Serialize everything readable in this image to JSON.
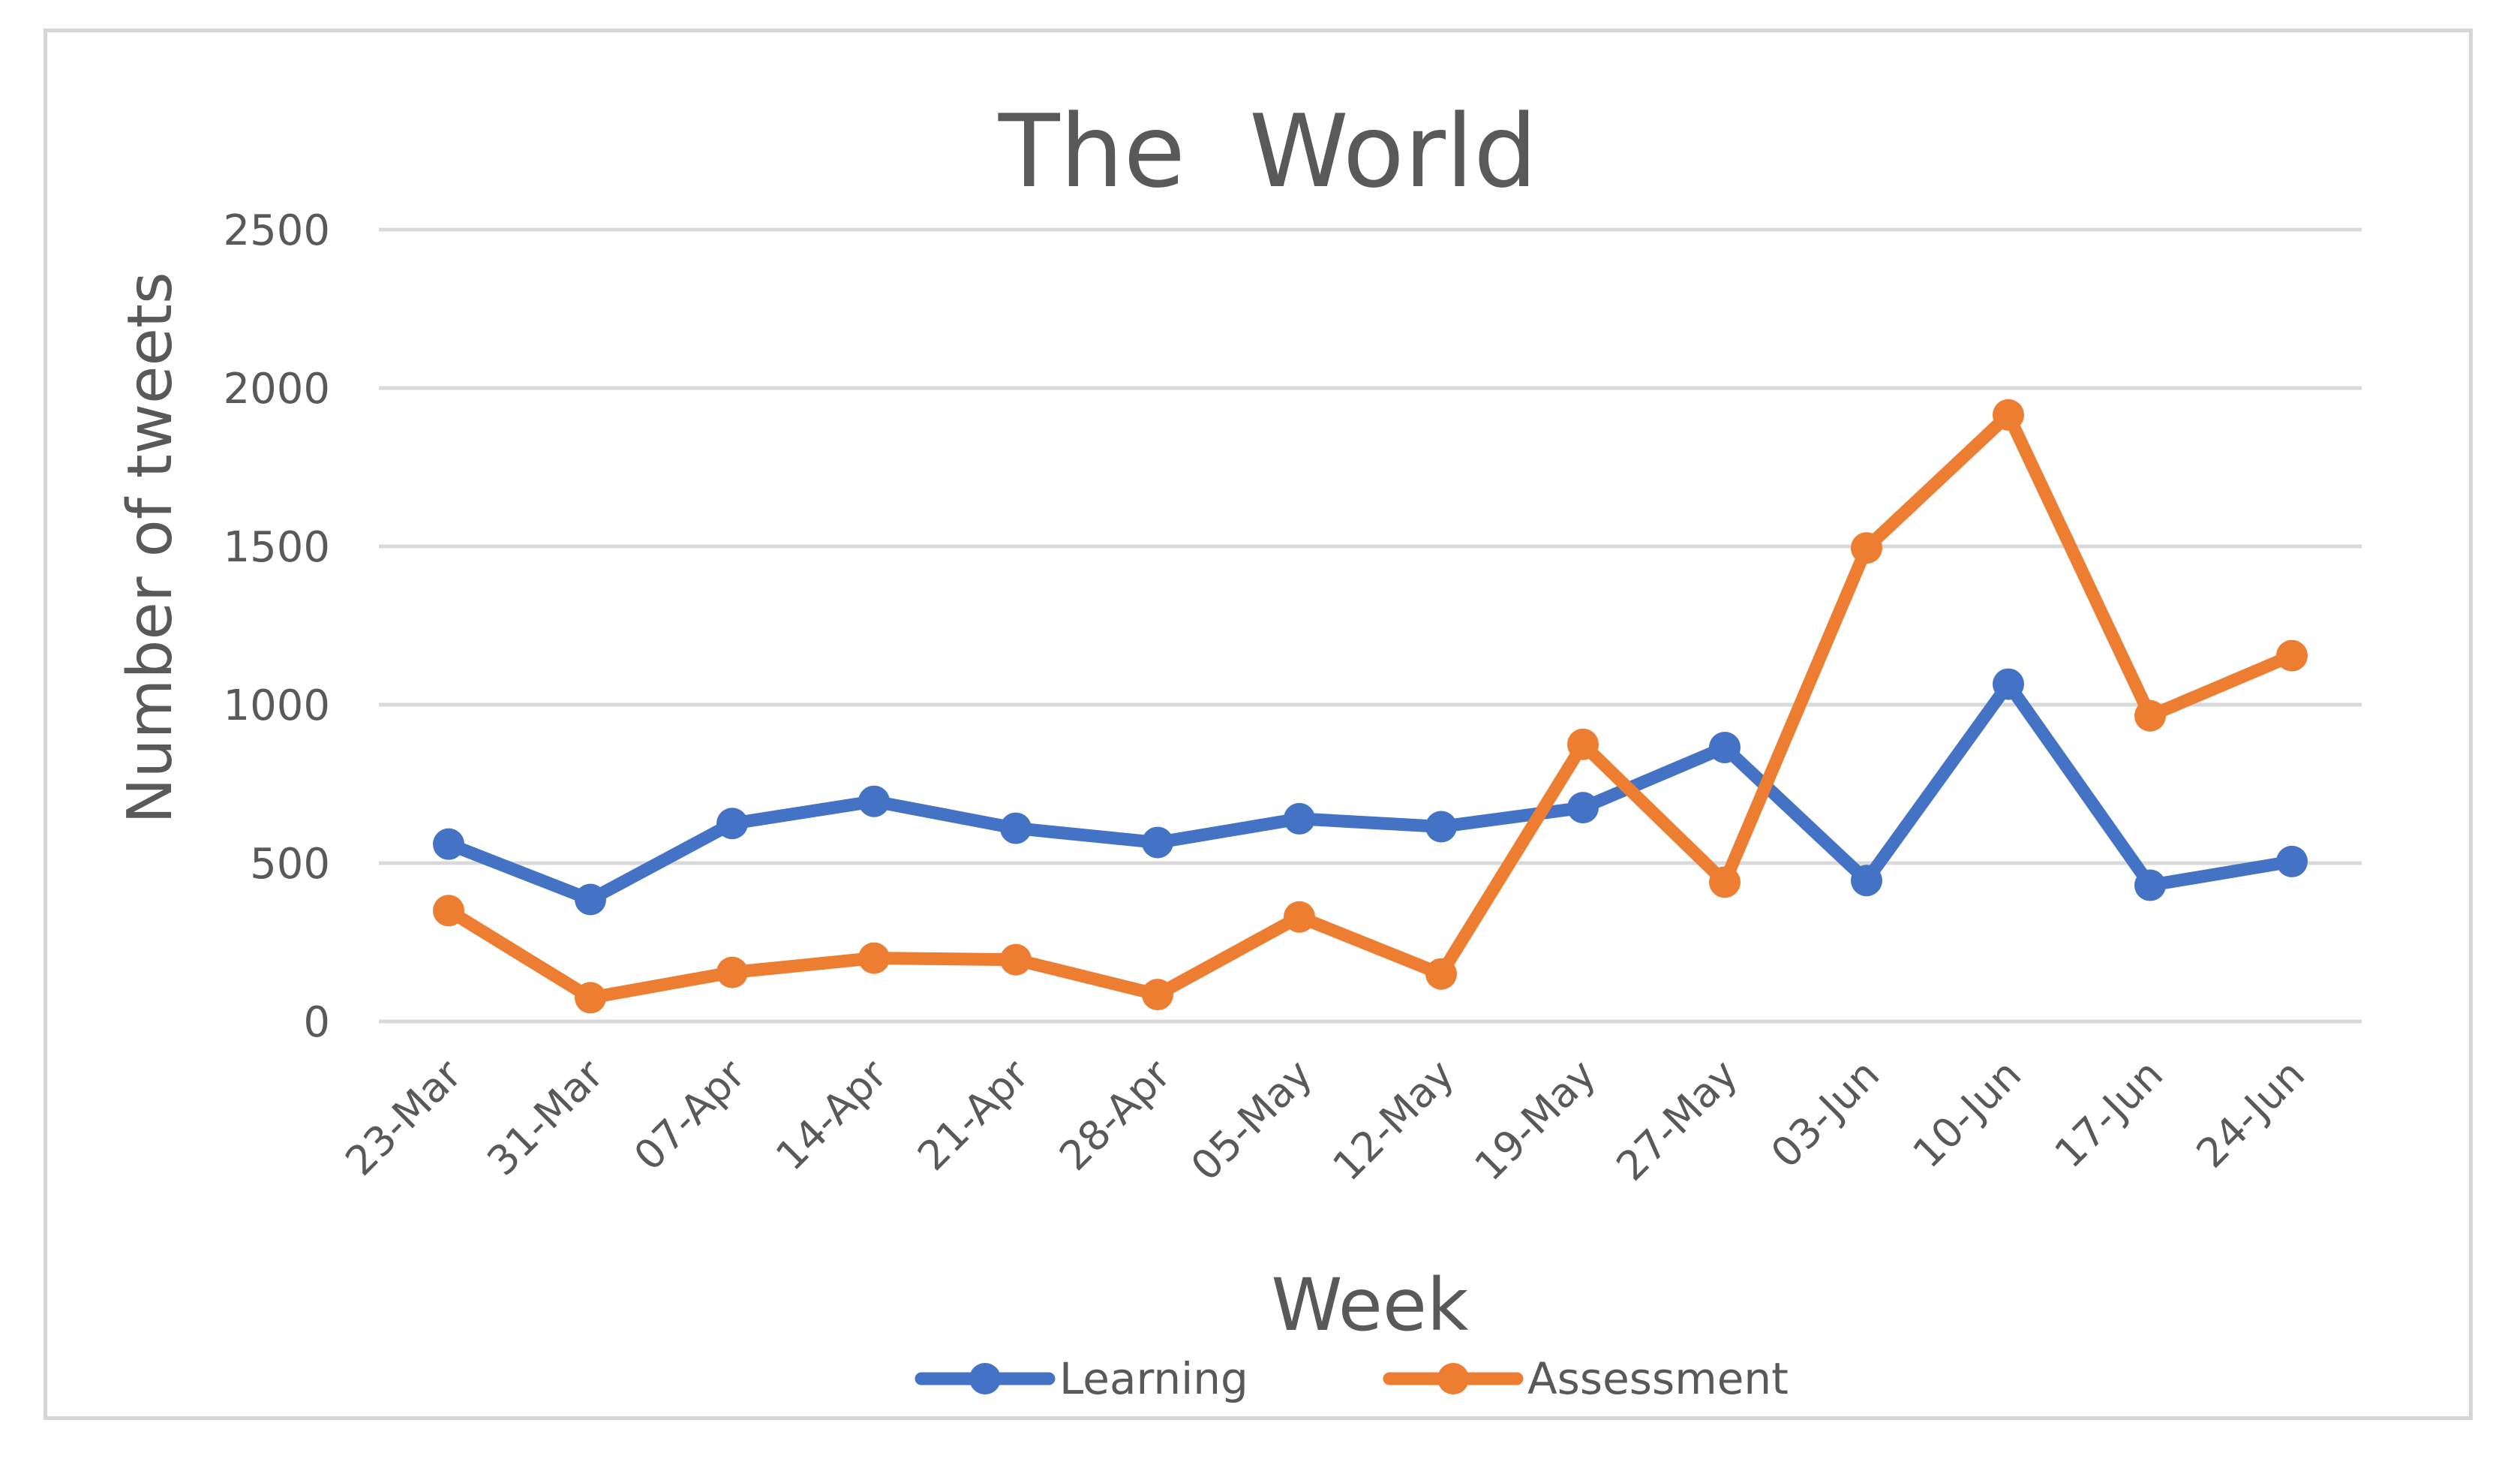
{
  "chart_data": {
    "type": "line",
    "title": "The  World",
    "xlabel": "Week",
    "ylabel": "Number of tweets",
    "categories": [
      "23-Mar",
      "31-Mar",
      "07-Apr",
      "14-Apr",
      "21-Apr",
      "28-Apr",
      "05-May",
      "12-May",
      "19-May",
      "27-May",
      "03-Jun",
      "10-Jun",
      "17-Jun",
      "24-Jun"
    ],
    "yticks": [
      "0",
      "500",
      "1000",
      "1500",
      "2000",
      "2500"
    ],
    "ylim": [
      0,
      2500
    ],
    "grid": true,
    "legend_position": "bottom",
    "series": [
      {
        "name": "Learning",
        "color": "#4472c4",
        "values": [
          560,
          385,
          625,
          695,
          610,
          565,
          640,
          615,
          675,
          865,
          445,
          1065,
          430,
          505
        ]
      },
      {
        "name": "Assessment",
        "color": "#ed7d31",
        "values": [
          350,
          75,
          155,
          200,
          195,
          85,
          330,
          150,
          875,
          440,
          1495,
          1915,
          965,
          1155
        ]
      }
    ]
  }
}
